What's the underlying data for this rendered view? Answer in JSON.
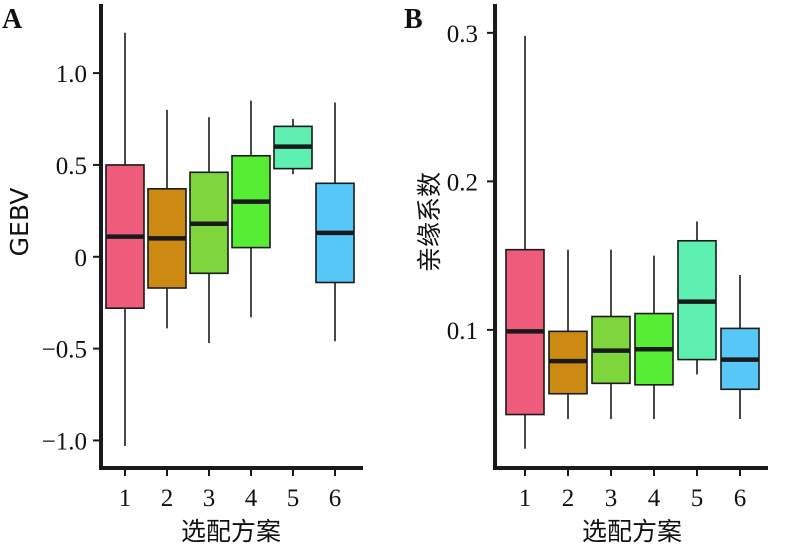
{
  "chart_data": [
    {
      "panel": "A",
      "type": "box",
      "xlabel": "选配方案",
      "ylabel": "GEBV",
      "categories": [
        "1",
        "2",
        "3",
        "4",
        "5",
        "6"
      ],
      "yticks": [
        -1.0,
        -0.5,
        0,
        0.5,
        1.0
      ],
      "ytick_labels": [
        "−1.0",
        "−0.5",
        "0",
        "0.5",
        "1.0"
      ],
      "ylim": [
        -1.15,
        1.3
      ],
      "boxes": [
        {
          "min": -1.03,
          "q1": -0.28,
          "median": 0.11,
          "q3": 0.5,
          "max": 1.22,
          "color": "#ef5b7a"
        },
        {
          "min": -0.39,
          "q1": -0.17,
          "median": 0.1,
          "q3": 0.37,
          "max": 0.8,
          "color": "#cc8a12"
        },
        {
          "min": -0.47,
          "q1": -0.09,
          "median": 0.18,
          "q3": 0.46,
          "max": 0.76,
          "color": "#7ed53c"
        },
        {
          "min": -0.33,
          "q1": 0.05,
          "median": 0.3,
          "q3": 0.55,
          "max": 0.85,
          "color": "#57ed35"
        },
        {
          "min": 0.45,
          "q1": 0.48,
          "median": 0.6,
          "q3": 0.71,
          "max": 0.75,
          "color": "#5ef0b0"
        },
        {
          "min": -0.46,
          "q1": -0.14,
          "median": 0.13,
          "q3": 0.4,
          "max": 0.84,
          "color": "#57c7f7"
        }
      ]
    },
    {
      "panel": "B",
      "type": "box",
      "xlabel": "选配方案",
      "ylabel": "亲缘系数",
      "categories": [
        "1",
        "2",
        "3",
        "4",
        "5",
        "6"
      ],
      "yticks": [
        0.1,
        0.2,
        0.3
      ],
      "ytick_labels": [
        "0.1",
        "0.2",
        "0.3"
      ],
      "ylim": [
        0.007,
        0.31
      ],
      "boxes": [
        {
          "min": 0.02,
          "q1": 0.043,
          "median": 0.099,
          "q3": 0.154,
          "max": 0.298,
          "color": "#ef5b7a"
        },
        {
          "min": 0.04,
          "q1": 0.057,
          "median": 0.079,
          "q3": 0.099,
          "max": 0.154,
          "color": "#cc8a12"
        },
        {
          "min": 0.04,
          "q1": 0.064,
          "median": 0.086,
          "q3": 0.109,
          "max": 0.154,
          "color": "#7ed53c"
        },
        {
          "min": 0.04,
          "q1": 0.063,
          "median": 0.087,
          "q3": 0.111,
          "max": 0.15,
          "color": "#57ed35"
        },
        {
          "min": 0.07,
          "q1": 0.08,
          "median": 0.119,
          "q3": 0.16,
          "max": 0.173,
          "color": "#5ef0b0"
        },
        {
          "min": 0.04,
          "q1": 0.06,
          "median": 0.08,
          "q3": 0.101,
          "max": 0.137,
          "color": "#57c7f7"
        }
      ]
    }
  ]
}
